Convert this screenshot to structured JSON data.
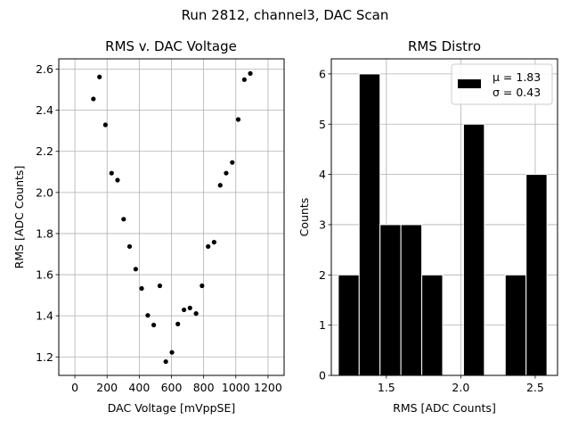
{
  "figure": {
    "suptitle": "Run 2812, channel3, DAC Scan"
  },
  "chart_data": [
    {
      "type": "scatter",
      "title": "RMS v. DAC Voltage",
      "xlabel": "DAC Voltage [mVppSE]",
      "ylabel": "RMS [ADC Counts]",
      "xlim": [
        -100,
        1300
      ],
      "ylim": [
        1.11,
        2.65
      ],
      "xticks": [
        0,
        200,
        400,
        600,
        800,
        1000,
        1200
      ],
      "yticks": [
        1.2,
        1.4,
        1.6,
        1.8,
        2.0,
        2.2,
        2.4,
        2.6
      ],
      "ytick_labels": [
        "1.2",
        "1.4",
        "1.6",
        "1.8",
        "2.0",
        "2.2",
        "2.4",
        "2.6"
      ],
      "grid": true,
      "marker_color": "#000000",
      "points": [
        {
          "x": 115,
          "y": 2.455
        },
        {
          "x": 153,
          "y": 2.562
        },
        {
          "x": 190,
          "y": 2.329
        },
        {
          "x": 228,
          "y": 2.094
        },
        {
          "x": 265,
          "y": 2.06
        },
        {
          "x": 303,
          "y": 1.87
        },
        {
          "x": 340,
          "y": 1.737
        },
        {
          "x": 378,
          "y": 1.627
        },
        {
          "x": 415,
          "y": 1.533
        },
        {
          "x": 453,
          "y": 1.402
        },
        {
          "x": 490,
          "y": 1.355
        },
        {
          "x": 528,
          "y": 1.546
        },
        {
          "x": 565,
          "y": 1.177
        },
        {
          "x": 603,
          "y": 1.222
        },
        {
          "x": 640,
          "y": 1.36
        },
        {
          "x": 678,
          "y": 1.429
        },
        {
          "x": 715,
          "y": 1.438
        },
        {
          "x": 753,
          "y": 1.411
        },
        {
          "x": 790,
          "y": 1.546
        },
        {
          "x": 828,
          "y": 1.737
        },
        {
          "x": 865,
          "y": 1.758
        },
        {
          "x": 903,
          "y": 2.035
        },
        {
          "x": 940,
          "y": 2.094
        },
        {
          "x": 978,
          "y": 2.146
        },
        {
          "x": 1015,
          "y": 2.355
        },
        {
          "x": 1053,
          "y": 2.549
        },
        {
          "x": 1090,
          "y": 2.579
        }
      ]
    },
    {
      "type": "bar",
      "subtype": "histogram",
      "title": "RMS Distro",
      "xlabel": "RMS [ADC Counts]",
      "ylabel": "Counts",
      "xlim": [
        1.13,
        2.65
      ],
      "ylim": [
        0,
        6.3
      ],
      "xticks": [
        1.5,
        2.0,
        2.5
      ],
      "xtick_labels": [
        "1.5",
        "2.0",
        "2.5"
      ],
      "yticks": [
        0,
        1,
        2,
        3,
        4,
        5,
        6
      ],
      "grid": true,
      "bar_color": "#000000",
      "edge_color": "#ffffff",
      "bins": [
        {
          "start": 1.177,
          "end": 1.3172,
          "count": 2
        },
        {
          "start": 1.3172,
          "end": 1.4574,
          "count": 6
        },
        {
          "start": 1.4574,
          "end": 1.5976,
          "count": 3
        },
        {
          "start": 1.5976,
          "end": 1.7378,
          "count": 3
        },
        {
          "start": 1.7378,
          "end": 1.878,
          "count": 2
        },
        {
          "start": 1.878,
          "end": 2.0182,
          "count": 0
        },
        {
          "start": 2.0182,
          "end": 2.1584,
          "count": 5
        },
        {
          "start": 2.1584,
          "end": 2.2986,
          "count": 0
        },
        {
          "start": 2.2986,
          "end": 2.4388,
          "count": 2
        },
        {
          "start": 2.4388,
          "end": 2.579,
          "count": 4
        }
      ],
      "legend": {
        "placement": "top-right",
        "line1": "μ = 1.83",
        "line2": "σ = 0.43",
        "swatch_color": "#000000"
      }
    }
  ]
}
